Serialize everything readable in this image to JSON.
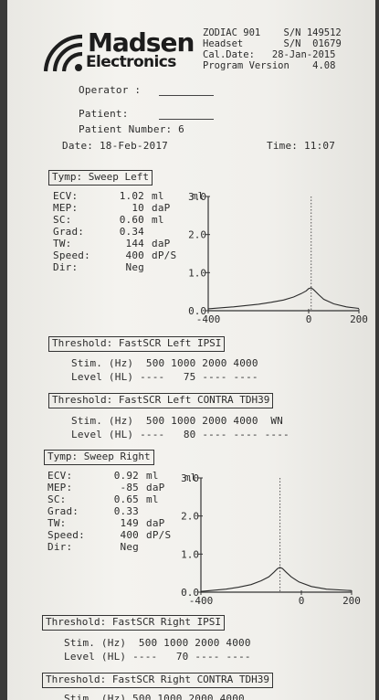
{
  "header": {
    "brand_top": "Madsen",
    "brand_bottom": "Electronics",
    "device_label": "ZODIAC 901",
    "device_sn_label": "S/N",
    "device_sn": "149512",
    "headset_label": "Headset",
    "headset_sn_label": "S/N",
    "headset_sn": "01679",
    "cal_label": "Cal.Date:",
    "cal_date": "28-Jan-2015",
    "program_label": "Program Version",
    "program_version": "4.08"
  },
  "patient": {
    "operator_label": "Operator :",
    "patient_label": "Patient:",
    "patient_number_label": "Patient Number:",
    "patient_number": "6",
    "date_label": "Date:",
    "date": "18-Feb-2017",
    "time_label": "Time:",
    "time": "11:07"
  },
  "left": {
    "title": "Tymp: Sweep Left",
    "rows": [
      {
        "label": "ECV:",
        "value": "1.02",
        "unit": "ml"
      },
      {
        "label": "MEP:",
        "value": "10",
        "unit": "daP"
      },
      {
        "label": "SC:",
        "value": "0.60",
        "unit": "ml"
      },
      {
        "label": "Grad:",
        "value": "0.34",
        "unit": ""
      },
      {
        "label": "TW:",
        "value": "144",
        "unit": "daP"
      },
      {
        "label": "Speed:",
        "value": "400",
        "unit": "dP/S"
      },
      {
        "label": "Dir:",
        "value": "Neg",
        "unit": ""
      }
    ],
    "ipsi_title": "Threshold: FastSCR Left IPSI",
    "ipsi_stim_label": "Stim. (Hz)",
    "ipsi_freqs": "500 1000 2000 4000",
    "ipsi_level_label": "Level (HL)",
    "ipsi_levels": [
      "----",
      "75",
      "----",
      "----"
    ],
    "contra_title": "Threshold: FastSCR Left CONTRA TDH39",
    "contra_stim_label": "Stim. (Hz)",
    "contra_freqs": "500 1000 2000 4000",
    "contra_extra": "WN",
    "contra_level_label": "Level (HL)",
    "contra_levels": [
      "----",
      "80",
      "----",
      "----",
      "----"
    ]
  },
  "right": {
    "title": "Tymp: Sweep Right",
    "rows": [
      {
        "label": "ECV:",
        "value": "0.92",
        "unit": "ml"
      },
      {
        "label": "MEP:",
        "value": "-85",
        "unit": "daP"
      },
      {
        "label": "SC:",
        "value": "0.65",
        "unit": "ml"
      },
      {
        "label": "Grad:",
        "value": "0.33",
        "unit": ""
      },
      {
        "label": "TW:",
        "value": "149",
        "unit": "daP"
      },
      {
        "label": "Speed:",
        "value": "400",
        "unit": "dP/S"
      },
      {
        "label": "Dir:",
        "value": "Neg",
        "unit": ""
      }
    ],
    "ipsi_title": "Threshold: FastSCR Right IPSI",
    "ipsi_stim_label": "Stim. (Hz)",
    "ipsi_freqs": "500 1000 2000 4000",
    "ipsi_level_label": "Level (HL)",
    "ipsi_levels": [
      "----",
      "70",
      "----",
      "----"
    ],
    "contra_title": "Threshold: FastSCR Right CONTRA TDH39",
    "contra_stim_partial": "Stim. (Hz) 500 1000 2000 4000"
  },
  "chart_data": [
    {
      "type": "line",
      "ylabel": "ml",
      "x_ticks": [
        "-400",
        "0",
        "200"
      ],
      "y_ticks": [
        "0.0",
        "1.0",
        "2.0",
        "3.0"
      ],
      "xlim": [
        -400,
        200
      ],
      "ylim": [
        0,
        3
      ],
      "peak_marker_x": 10,
      "series": [
        {
          "x": [
            -400,
            -300,
            -200,
            -150,
            -100,
            -60,
            -30,
            -10,
            0,
            10,
            20,
            40,
            60,
            100,
            150,
            200
          ],
          "y": [
            0.05,
            0.1,
            0.17,
            0.22,
            0.28,
            0.36,
            0.45,
            0.52,
            0.58,
            0.6,
            0.55,
            0.42,
            0.3,
            0.18,
            0.1,
            0.06
          ]
        }
      ]
    },
    {
      "type": "line",
      "ylabel": "ml",
      "x_ticks": [
        "-400",
        "0",
        "200"
      ],
      "y_ticks": [
        "0.0",
        "1.0",
        "2.0",
        "3.0"
      ],
      "xlim": [
        -400,
        200
      ],
      "ylim": [
        0,
        3
      ],
      "peak_marker_x": -85,
      "series": [
        {
          "x": [
            -400,
            -300,
            -250,
            -200,
            -160,
            -130,
            -110,
            -95,
            -85,
            -75,
            -60,
            -40,
            -10,
            40,
            100,
            200
          ],
          "y": [
            0.02,
            0.08,
            0.13,
            0.2,
            0.3,
            0.4,
            0.52,
            0.62,
            0.65,
            0.62,
            0.52,
            0.4,
            0.27,
            0.15,
            0.08,
            0.04
          ]
        }
      ]
    }
  ]
}
